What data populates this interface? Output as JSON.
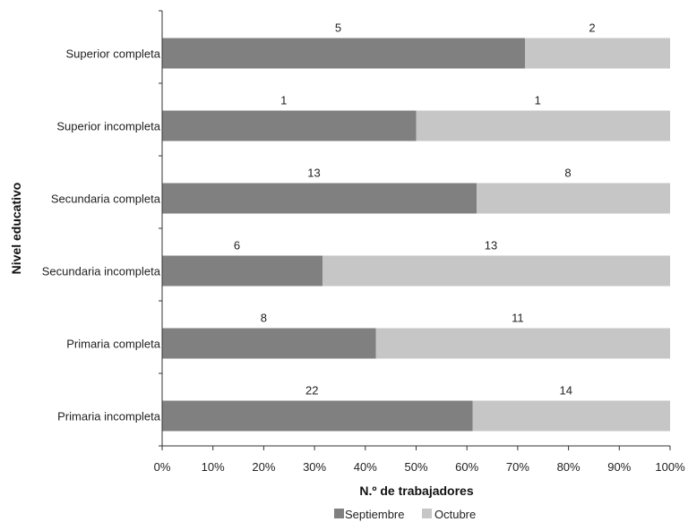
{
  "chart_data": {
    "type": "bar",
    "orientation": "horizontal",
    "stacked": "percent",
    "categories": [
      "Superior completa",
      "Superior incompleta",
      "Secundaria completa",
      "Secundaria incompleta",
      "Primaria completa",
      "Primaria incompleta"
    ],
    "series": [
      {
        "name": "Septiembre",
        "values": [
          5,
          1,
          13,
          6,
          8,
          22
        ],
        "color": "#808080"
      },
      {
        "name": "Octubre",
        "values": [
          2,
          1,
          8,
          13,
          11,
          14
        ],
        "color": "#c6c6c6"
      }
    ],
    "xlabel": "N.º de trabajadores",
    "ylabel": "Nivel educativo",
    "xticks": [
      "0%",
      "10%",
      "20%",
      "30%",
      "40%",
      "50%",
      "60%",
      "70%",
      "80%",
      "90%",
      "100%"
    ],
    "xlim": [
      0,
      100
    ],
    "grid": false,
    "legend_position": "bottom"
  }
}
